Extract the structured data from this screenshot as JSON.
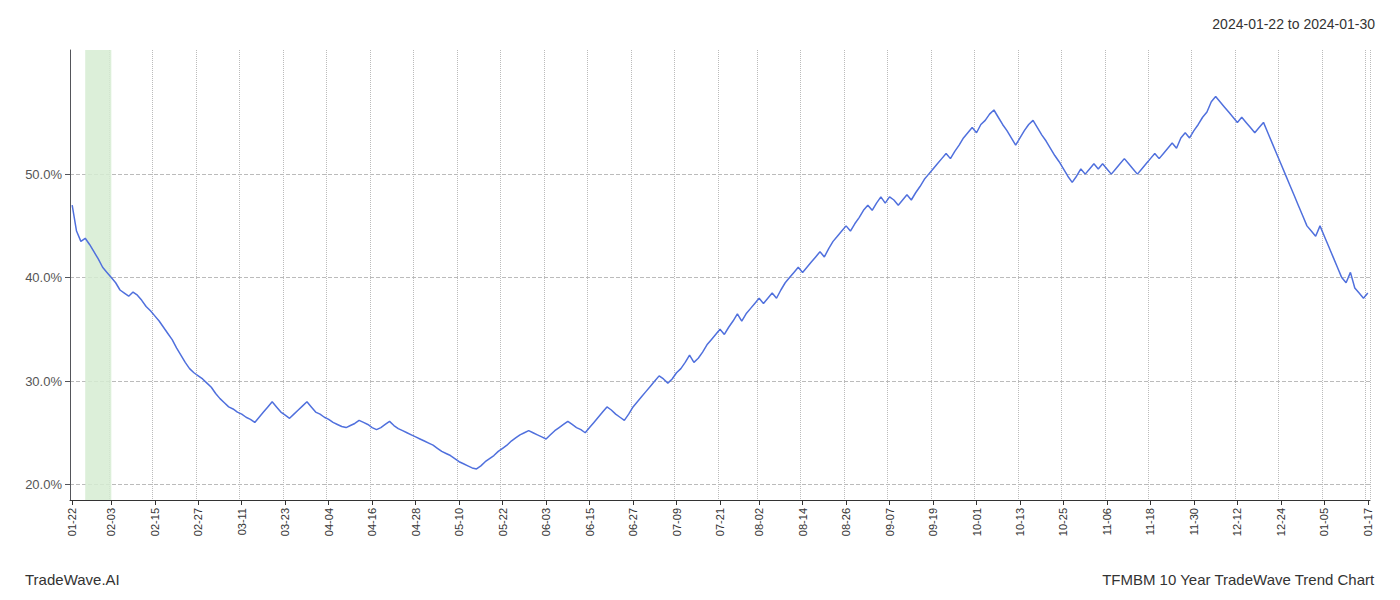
{
  "chart_data": {
    "type": "line",
    "title": "2024-01-22 to 2024-01-30",
    "annotations": [
      "TradeWave.AI",
      "TFMBM 10 Year TradeWave Trend Chart"
    ],
    "grid": true,
    "highlight": {
      "start": 3,
      "end": 9,
      "color": "#d6ecd2"
    },
    "ylim": [
      18.5,
      62.0
    ],
    "yticks": [
      {
        "value": 20.0,
        "label": "20.0%"
      },
      {
        "value": 30.0,
        "label": "30.0%"
      },
      {
        "value": 40.0,
        "label": "40.0%"
      },
      {
        "value": 50.0,
        "label": "50.0%"
      }
    ],
    "categories": [
      "01-22",
      null,
      null,
      null,
      null,
      null,
      null,
      null,
      null,
      "02-03",
      null,
      null,
      null,
      null,
      null,
      null,
      null,
      null,
      null,
      "02-15",
      null,
      null,
      null,
      null,
      null,
      null,
      null,
      null,
      null,
      "02-27",
      null,
      null,
      null,
      null,
      null,
      null,
      null,
      null,
      null,
      "03-11",
      null,
      null,
      null,
      null,
      null,
      null,
      null,
      null,
      null,
      "03-23",
      null,
      null,
      null,
      null,
      null,
      null,
      null,
      null,
      null,
      "04-04",
      null,
      null,
      null,
      null,
      null,
      null,
      null,
      null,
      null,
      "04-16",
      null,
      null,
      null,
      null,
      null,
      null,
      null,
      null,
      null,
      "04-28",
      null,
      null,
      null,
      null,
      null,
      null,
      null,
      null,
      null,
      "05-10",
      null,
      null,
      null,
      null,
      null,
      null,
      null,
      null,
      null,
      "05-22",
      null,
      null,
      null,
      null,
      null,
      null,
      null,
      null,
      null,
      "06-03",
      null,
      null,
      null,
      null,
      null,
      null,
      null,
      null,
      null,
      "06-15",
      null,
      null,
      null,
      null,
      null,
      null,
      null,
      null,
      null,
      "06-27",
      null,
      null,
      null,
      null,
      null,
      null,
      null,
      null,
      null,
      "07-09",
      null,
      null,
      null,
      null,
      null,
      null,
      null,
      null,
      null,
      "07-21",
      null,
      null,
      null,
      null,
      null,
      null,
      null,
      null,
      "08-02",
      null,
      null,
      null,
      null,
      null,
      null,
      null,
      null,
      null,
      "08-14",
      null,
      null,
      null,
      null,
      null,
      null,
      null,
      null,
      null,
      "08-26",
      null,
      null,
      null,
      null,
      null,
      null,
      null,
      null,
      null,
      "09-07",
      null,
      null,
      null,
      null,
      null,
      null,
      null,
      null,
      null,
      "09-19",
      null,
      null,
      null,
      null,
      null,
      null,
      null,
      null,
      null,
      "10-01",
      null,
      null,
      null,
      null,
      null,
      null,
      null,
      null,
      null,
      "10-13",
      null,
      null,
      null,
      null,
      null,
      null,
      null,
      null,
      null,
      "10-25",
      null,
      null,
      null,
      null,
      null,
      null,
      null,
      null,
      null,
      "11-06",
      null,
      null,
      null,
      null,
      null,
      null,
      null,
      null,
      null,
      "11-18",
      null,
      null,
      null,
      null,
      null,
      null,
      null,
      null,
      null,
      "11-30",
      null,
      null,
      null,
      null,
      null,
      null,
      null,
      null,
      null,
      "12-12",
      null,
      null,
      null,
      null,
      null,
      null,
      null,
      null,
      null,
      "12-24",
      null,
      null,
      null,
      null,
      null,
      null,
      null,
      null,
      null,
      "01-05",
      null,
      null,
      null,
      null,
      null,
      null,
      null,
      null,
      null,
      "01-17"
    ],
    "values": [
      47.0,
      44.5,
      43.5,
      43.8,
      43.2,
      42.5,
      41.8,
      41.0,
      40.5,
      40.0,
      39.5,
      38.8,
      38.5,
      38.2,
      38.6,
      38.3,
      37.8,
      37.2,
      36.8,
      36.3,
      35.8,
      35.2,
      34.6,
      34.0,
      33.2,
      32.5,
      31.8,
      31.2,
      30.8,
      30.5,
      30.2,
      29.8,
      29.4,
      28.8,
      28.3,
      27.9,
      27.5,
      27.3,
      27.0,
      26.8,
      26.5,
      26.3,
      26.0,
      26.5,
      27.0,
      27.5,
      28.0,
      27.5,
      27.0,
      26.7,
      26.4,
      26.8,
      27.2,
      27.6,
      28.0,
      27.5,
      27.0,
      26.8,
      26.5,
      26.3,
      26.0,
      25.8,
      25.6,
      25.5,
      25.7,
      25.9,
      26.2,
      26.0,
      25.8,
      25.5,
      25.3,
      25.5,
      25.8,
      26.1,
      25.7,
      25.4,
      25.2,
      25.0,
      24.8,
      24.6,
      24.4,
      24.2,
      24.0,
      23.8,
      23.5,
      23.2,
      23.0,
      22.8,
      22.5,
      22.2,
      22.0,
      21.8,
      21.6,
      21.5,
      21.8,
      22.2,
      22.5,
      22.8,
      23.2,
      23.5,
      23.8,
      24.2,
      24.5,
      24.8,
      25.0,
      25.2,
      25.0,
      24.8,
      24.6,
      24.4,
      24.8,
      25.2,
      25.5,
      25.8,
      26.1,
      25.8,
      25.5,
      25.3,
      25.0,
      25.5,
      26.0,
      26.5,
      27.0,
      27.5,
      27.2,
      26.8,
      26.5,
      26.2,
      26.8,
      27.5,
      28.0,
      28.5,
      29.0,
      29.5,
      30.0,
      30.5,
      30.2,
      29.8,
      30.2,
      30.8,
      31.2,
      31.8,
      32.5,
      31.8,
      32.2,
      32.8,
      33.5,
      34.0,
      34.5,
      35.0,
      34.5,
      35.2,
      35.8,
      36.5,
      35.8,
      36.5,
      37.0,
      37.5,
      38.0,
      37.5,
      38.0,
      38.5,
      38.0,
      38.8,
      39.5,
      40.0,
      40.5,
      41.0,
      40.5,
      41.0,
      41.5,
      42.0,
      42.5,
      42.0,
      42.8,
      43.5,
      44.0,
      44.5,
      45.0,
      44.5,
      45.2,
      45.8,
      46.5,
      47.0,
      46.5,
      47.2,
      47.8,
      47.2,
      47.8,
      47.5,
      47.0,
      47.5,
      48.0,
      47.5,
      48.2,
      48.8,
      49.5,
      50.0,
      50.5,
      51.0,
      51.5,
      52.0,
      51.5,
      52.2,
      52.8,
      53.5,
      54.0,
      54.5,
      54.0,
      54.8,
      55.2,
      55.8,
      56.2,
      55.5,
      54.8,
      54.2,
      53.5,
      52.8,
      53.5,
      54.2,
      54.8,
      55.2,
      54.5,
      53.8,
      53.2,
      52.5,
      51.8,
      51.2,
      50.5,
      49.8,
      49.2,
      49.8,
      50.5,
      50.0,
      50.5,
      51.0,
      50.5,
      51.0,
      50.5,
      50.0,
      50.5,
      51.0,
      51.5,
      51.0,
      50.5,
      50.0,
      50.5,
      51.0,
      51.5,
      52.0,
      51.5,
      52.0,
      52.5,
      53.0,
      52.5,
      53.5,
      54.0,
      53.5,
      54.2,
      54.8,
      55.5,
      56.0,
      57.0,
      57.5,
      57.0,
      56.5,
      56.0,
      55.5,
      55.0,
      55.5,
      55.0,
      54.5,
      54.0,
      54.5,
      55.0,
      54.0,
      53.0,
      52.0,
      51.0,
      50.0,
      49.0,
      48.0,
      47.0,
      46.0,
      45.0,
      44.5,
      44.0,
      45.0,
      44.0,
      43.0,
      42.0,
      41.0,
      40.0,
      39.5,
      40.5,
      39.0,
      38.5,
      38.0,
      38.5
    ]
  }
}
